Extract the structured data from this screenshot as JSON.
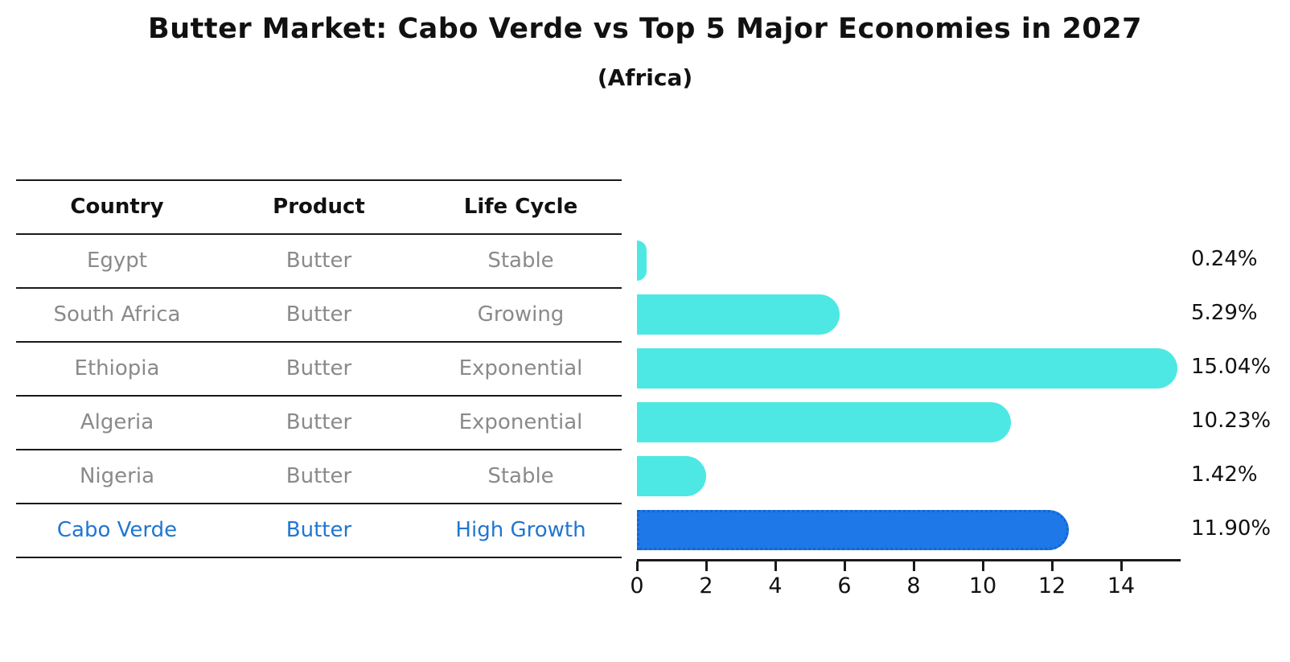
{
  "title": "Butter Market: Cabo Verde vs Top 5 Major Economies in 2027",
  "subtitle": "(Africa)",
  "table": {
    "headers": [
      "Country",
      "Product",
      "Life Cycle"
    ],
    "rows": [
      {
        "country": "Egypt",
        "product": "Butter",
        "life_cycle": "Stable",
        "highlight": false
      },
      {
        "country": "South Africa",
        "product": "Butter",
        "life_cycle": "Growing",
        "highlight": false
      },
      {
        "country": "Ethiopia",
        "product": "Butter",
        "life_cycle": "Exponential",
        "highlight": false
      },
      {
        "country": "Algeria",
        "product": "Butter",
        "life_cycle": "Exponential",
        "highlight": false
      },
      {
        "country": "Nigeria",
        "product": "Butter",
        "life_cycle": "Stable",
        "highlight": false
      },
      {
        "country": "Cabo Verde",
        "product": "Butter",
        "life_cycle": "High Growth",
        "highlight": true
      }
    ]
  },
  "chart_data": {
    "type": "bar",
    "orientation": "horizontal",
    "title": "Butter Market: Cabo Verde vs Top 5 Major Economies in 2027 (Africa)",
    "categories": [
      "Egypt",
      "South Africa",
      "Ethiopia",
      "Algeria",
      "Nigeria",
      "Cabo Verde"
    ],
    "values": [
      0.24,
      5.29,
      15.04,
      10.23,
      1.42,
      11.9
    ],
    "value_labels": [
      "0.24%",
      "5.29%",
      "15.04%",
      "10.23%",
      "1.42%",
      "11.90%"
    ],
    "highlight_index": 5,
    "x_ticks": [
      0,
      2,
      4,
      6,
      8,
      10,
      12,
      14
    ],
    "xlim": [
      0,
      15.7
    ],
    "grid": false,
    "legend": false,
    "xlabel": "",
    "ylabel": ""
  },
  "colors": {
    "bar": "#4de8e4",
    "highlight_bar": "#1e78e8",
    "highlight_border": "#1565d0",
    "row_text": "#8a8a8a",
    "highlight_text": "#2176d2",
    "heading_text": "#111111",
    "axis": "#1a1a1a"
  }
}
